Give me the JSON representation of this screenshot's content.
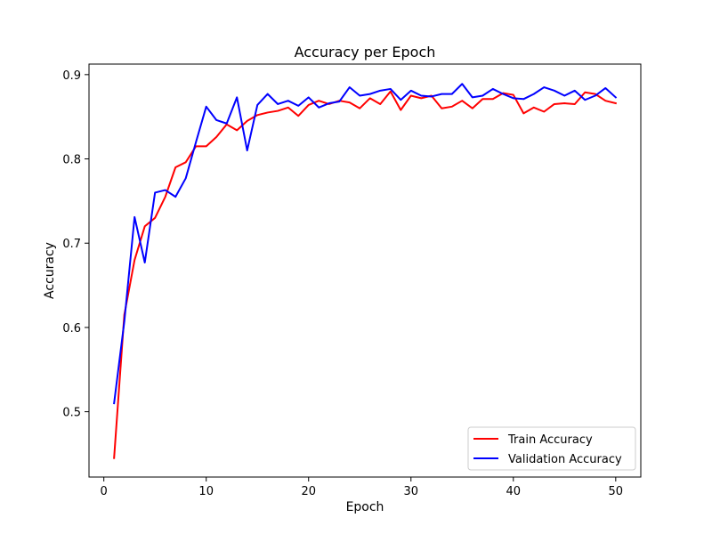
{
  "chart_data": {
    "type": "line",
    "title": "Accuracy per Epoch",
    "xlabel": "Epoch",
    "ylabel": "Accuracy",
    "xlim": [
      -1.45,
      52.45
    ],
    "ylim": [
      0.4225,
      0.9125
    ],
    "x_ticks": [
      0,
      10,
      20,
      30,
      40,
      50
    ],
    "x_tick_labels": [
      "0",
      "10",
      "20",
      "30",
      "40",
      "50"
    ],
    "y_ticks": [
      0.5,
      0.6,
      0.7,
      0.8,
      0.9
    ],
    "y_tick_labels": [
      "0.5",
      "0.6",
      "0.7",
      "0.8",
      "0.9"
    ],
    "grid": false,
    "legend_position": "lower-right",
    "x": [
      1,
      2,
      3,
      4,
      5,
      6,
      7,
      8,
      9,
      10,
      11,
      12,
      13,
      14,
      15,
      16,
      17,
      18,
      19,
      20,
      21,
      22,
      23,
      24,
      25,
      26,
      27,
      28,
      29,
      30,
      31,
      32,
      33,
      34,
      35,
      36,
      37,
      38,
      39,
      40,
      41,
      42,
      43,
      44,
      45,
      46,
      47,
      48,
      49,
      50
    ],
    "series": [
      {
        "name": "Train Accuracy",
        "color": "#ff0000",
        "values": [
          0.445,
          0.615,
          0.68,
          0.72,
          0.73,
          0.755,
          0.79,
          0.796,
          0.815,
          0.815,
          0.826,
          0.841,
          0.834,
          0.845,
          0.852,
          0.855,
          0.857,
          0.861,
          0.851,
          0.864,
          0.869,
          0.865,
          0.869,
          0.867,
          0.86,
          0.872,
          0.865,
          0.88,
          0.858,
          0.875,
          0.872,
          0.875,
          0.86,
          0.862,
          0.869,
          0.86,
          0.871,
          0.871,
          0.878,
          0.876,
          0.854,
          0.861,
          0.856,
          0.865,
          0.866,
          0.865,
          0.879,
          0.877,
          0.869,
          0.866
        ]
      },
      {
        "name": "Validation Accuracy",
        "color": "#0000ff",
        "values": [
          0.51,
          0.607,
          0.731,
          0.677,
          0.76,
          0.763,
          0.755,
          0.777,
          0.82,
          0.862,
          0.846,
          0.842,
          0.873,
          0.81,
          0.864,
          0.877,
          0.865,
          0.869,
          0.863,
          0.873,
          0.861,
          0.866,
          0.868,
          0.885,
          0.875,
          0.877,
          0.881,
          0.883,
          0.87,
          0.881,
          0.875,
          0.874,
          0.877,
          0.877,
          0.889,
          0.873,
          0.875,
          0.883,
          0.877,
          0.872,
          0.871,
          0.877,
          0.885,
          0.881,
          0.875,
          0.881,
          0.87,
          0.875,
          0.884,
          0.873
        ]
      }
    ]
  }
}
